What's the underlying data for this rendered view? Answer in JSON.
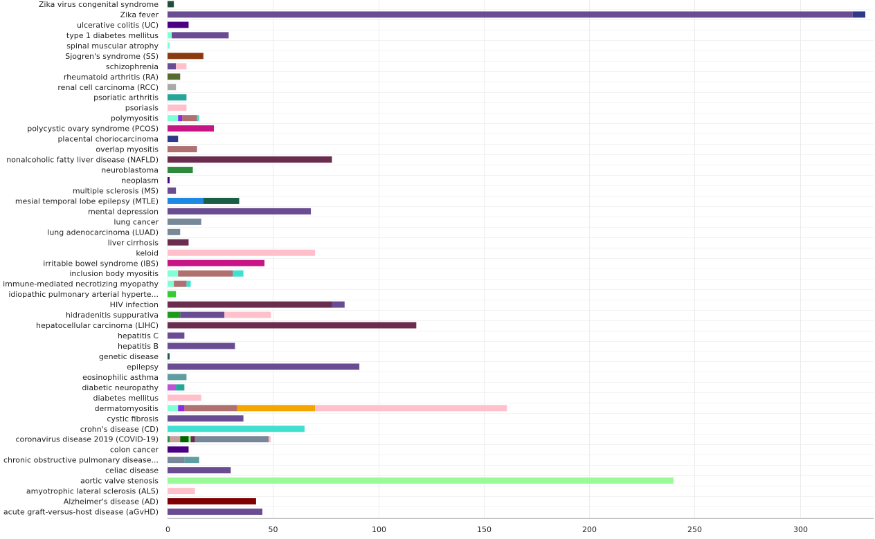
{
  "chart_data": {
    "type": "bar",
    "orientation": "horizontal",
    "stacked": true,
    "title": "",
    "xlabel": "",
    "ylabel": "",
    "xlim": [
      0,
      331
    ],
    "x_ticks": [
      0,
      50,
      100,
      150,
      200,
      250,
      300
    ],
    "grid": true,
    "legend": "none",
    "categories": [
      "Zika virus congenital syndrome",
      "Zika fever",
      "ulcerative colitis (UC)",
      "type 1 diabetes mellitus",
      "spinal muscular atrophy",
      "Sjogren's syndrome (SS)",
      "schizophrenia",
      "rheumatoid arthritis (RA)",
      "renal cell carcinoma (RCC)",
      "psoriatic arthritis",
      "psoriasis",
      "polymyositis",
      "polycystic ovary syndrome (PCOS)",
      "placental choriocarcinoma",
      "overlap myositis",
      "nonalcoholic fatty liver disease (NAFLD)",
      "neuroblastoma",
      "neoplasm",
      "multiple sclerosis (MS)",
      "mesial temporal lobe epilepsy (MTLE)",
      "mental depression",
      "lung cancer",
      "lung adenocarcinoma (LUAD)",
      "liver cirrhosis",
      "keloid",
      "irritable bowel syndrome (IBS)",
      "inclusion body myositis",
      "immune-mediated necrotizing myopathy",
      "idiopathic pulmonary arterial hyperte...",
      "HIV infection",
      "hidradenitis suppurativa",
      "hepatocellular carcinoma (LIHC)",
      "hepatitis C",
      "hepatitis B",
      "genetic disease",
      "epilepsy",
      "eosinophilic asthma",
      "diabetic neuropathy",
      "diabetes mellitus",
      "dermatomyositis",
      "cystic fibrosis",
      "crohn's disease (CD)",
      "coronavirus disease 2019 (COVID-19)",
      "colon cancer",
      "chronic obstructive pulmonary disease...",
      "celiac disease",
      "aortic valve stenosis",
      "amyotrophic lateral sclerosis (ALS)",
      "Alzheimer's disease (AD)",
      "acute graft-versus-host disease (aGvHD)"
    ],
    "stacks": [
      [
        {
          "value": 3,
          "color": "#1f4e3d"
        }
      ],
      [
        {
          "value": 325,
          "color": "#6a4c93"
        },
        {
          "value": 6,
          "color": "#2e3a87"
        }
      ],
      [
        {
          "value": 10,
          "color": "#4b0082"
        }
      ],
      [
        {
          "value": 2,
          "color": "#7fffd4"
        },
        {
          "value": 27,
          "color": "#6a4c93"
        }
      ],
      [
        {
          "value": 1,
          "color": "#7fffd4"
        }
      ],
      [
        {
          "value": 17,
          "color": "#8b3a0f"
        }
      ],
      [
        {
          "value": 4,
          "color": "#6a4c93"
        },
        {
          "value": 5,
          "color": "#ffc0cb"
        }
      ],
      [
        {
          "value": 6,
          "color": "#556b2f"
        }
      ],
      [
        {
          "value": 4,
          "color": "#a9a9a9"
        }
      ],
      [
        {
          "value": 9,
          "color": "#26a69a"
        }
      ],
      [
        {
          "value": 9,
          "color": "#ffc0cb"
        }
      ],
      [
        {
          "value": 5,
          "color": "#7fffd4"
        },
        {
          "value": 2,
          "color": "#8a2be2"
        },
        {
          "value": 7,
          "color": "#b07070"
        },
        {
          "value": 1,
          "color": "#40e0d0"
        }
      ],
      [
        {
          "value": 22,
          "color": "#c71585"
        }
      ],
      [
        {
          "value": 5,
          "color": "#2e3a87"
        }
      ],
      [
        {
          "value": 14,
          "color": "#b07070"
        }
      ],
      [
        {
          "value": 78,
          "color": "#6b2d4e"
        }
      ],
      [
        {
          "value": 12,
          "color": "#2e8b3d"
        }
      ],
      [
        {
          "value": 1,
          "color": "#4b0082"
        }
      ],
      [
        {
          "value": 4,
          "color": "#6a4c93"
        }
      ],
      [
        {
          "value": 17,
          "color": "#1e88e5"
        },
        {
          "value": 17,
          "color": "#1a5e45"
        }
      ],
      [
        {
          "value": 68,
          "color": "#6a4c93"
        }
      ],
      [
        {
          "value": 16,
          "color": "#778899"
        }
      ],
      [
        {
          "value": 6,
          "color": "#778899"
        }
      ],
      [
        {
          "value": 10,
          "color": "#6b2d4e"
        }
      ],
      [
        {
          "value": 70,
          "color": "#ffc0cb"
        }
      ],
      [
        {
          "value": 46,
          "color": "#c71585"
        }
      ],
      [
        {
          "value": 5,
          "color": "#7fffd4"
        },
        {
          "value": 26,
          "color": "#b07070"
        },
        {
          "value": 5,
          "color": "#40e0d0"
        }
      ],
      [
        {
          "value": 3,
          "color": "#7fffd4"
        },
        {
          "value": 6,
          "color": "#b07070"
        },
        {
          "value": 2,
          "color": "#40e0d0"
        }
      ],
      [
        {
          "value": 4,
          "color": "#32cd32"
        }
      ],
      [
        {
          "value": 78,
          "color": "#6b2d4e"
        },
        {
          "value": 6,
          "color": "#6a4c93"
        }
      ],
      [
        {
          "value": 6,
          "color": "#1a9c1a"
        },
        {
          "value": 21,
          "color": "#6a4c93"
        },
        {
          "value": 22,
          "color": "#ffc0cb"
        }
      ],
      [
        {
          "value": 118,
          "color": "#6b2d4e"
        }
      ],
      [
        {
          "value": 8,
          "color": "#6a4c93"
        }
      ],
      [
        {
          "value": 32,
          "color": "#6a4c93"
        }
      ],
      [
        {
          "value": 1,
          "color": "#1a5e45"
        }
      ],
      [
        {
          "value": 91,
          "color": "#6a4c93"
        }
      ],
      [
        {
          "value": 9,
          "color": "#5f9ea0"
        }
      ],
      [
        {
          "value": 4,
          "color": "#ba55d3"
        },
        {
          "value": 4,
          "color": "#26a69a"
        }
      ],
      [
        {
          "value": 16,
          "color": "#ffc0cb"
        }
      ],
      [
        {
          "value": 5,
          "color": "#7fffd4"
        },
        {
          "value": 3,
          "color": "#8a2be2"
        },
        {
          "value": 25,
          "color": "#b07070"
        },
        {
          "value": 37,
          "color": "#f5a500"
        },
        {
          "value": 91,
          "color": "#ffc0cb"
        }
      ],
      [
        {
          "value": 36,
          "color": "#6a4c93"
        }
      ],
      [
        {
          "value": 65,
          "color": "#40e0d0"
        }
      ],
      [
        {
          "value": 1,
          "color": "#2e8b3d"
        },
        {
          "value": 5,
          "color": "#c8a0a0"
        },
        {
          "value": 4,
          "color": "#006400"
        },
        {
          "value": 1,
          "color": "#90ee90"
        },
        {
          "value": 2,
          "color": "#6b2d4e"
        },
        {
          "value": 35,
          "color": "#778899"
        },
        {
          "value": 1,
          "color": "#ffc0cb"
        }
      ],
      [
        {
          "value": 10,
          "color": "#4b0082"
        }
      ],
      [
        {
          "value": 8,
          "color": "#778899"
        },
        {
          "value": 7,
          "color": "#5f9ea0"
        }
      ],
      [
        {
          "value": 30,
          "color": "#6a4c93"
        }
      ],
      [
        {
          "value": 240,
          "color": "#98fb98"
        }
      ],
      [
        {
          "value": 13,
          "color": "#ffc0cb"
        }
      ],
      [
        {
          "value": 42,
          "color": "#800000"
        }
      ],
      [
        {
          "value": 45,
          "color": "#6a4c93"
        }
      ]
    ]
  }
}
